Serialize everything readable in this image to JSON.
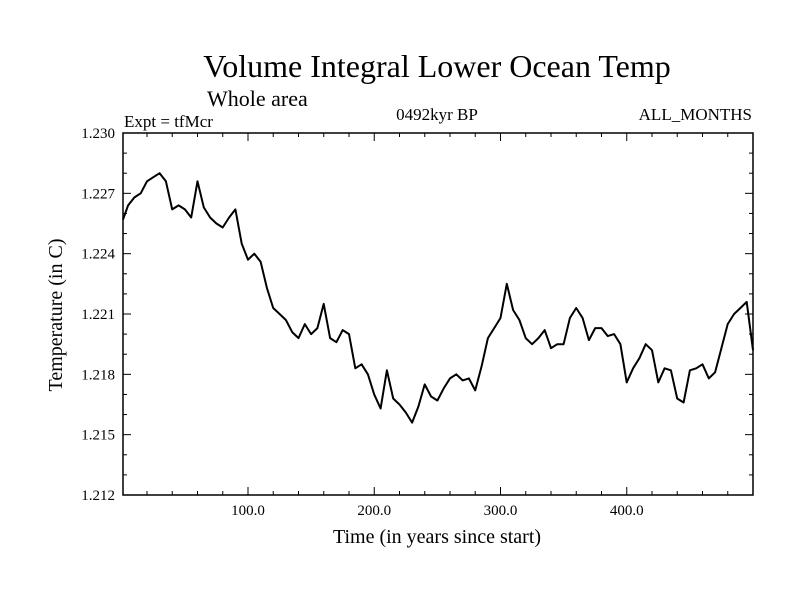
{
  "chart_data": {
    "type": "line",
    "title": "Volume Integral Lower Ocean Temp",
    "subtitle": "Whole area",
    "left_label": "Expt = tfMcr",
    "center_label": "0492kyr BP",
    "right_label": "ALL_MONTHS",
    "xlabel": "Time (in years since start)",
    "ylabel": "Temperature (in C)",
    "xlim": [
      1,
      500
    ],
    "ylim": [
      1.212,
      1.23
    ],
    "x_ticks": [
      100,
      200,
      300,
      400
    ],
    "x_tick_labels": [
      "100.0",
      "200.0",
      "300.0",
      "400.0"
    ],
    "y_ticks": [
      1.212,
      1.215,
      1.218,
      1.221,
      1.224,
      1.227,
      1.23
    ],
    "y_tick_labels": [
      "1.212",
      "1.215",
      "1.218",
      "1.221",
      "1.224",
      "1.227",
      "1.230"
    ],
    "series": [
      {
        "name": "Volume integral lower ocean temperature",
        "x": [
          1,
          5,
          10,
          15,
          20,
          25,
          30,
          35,
          40,
          45,
          50,
          55,
          60,
          65,
          70,
          75,
          80,
          85,
          90,
          95,
          100,
          105,
          110,
          115,
          120,
          125,
          130,
          135,
          140,
          145,
          150,
          155,
          160,
          165,
          170,
          175,
          180,
          185,
          190,
          195,
          200,
          205,
          210,
          215,
          220,
          225,
          230,
          235,
          240,
          245,
          250,
          255,
          260,
          265,
          270,
          275,
          280,
          285,
          290,
          295,
          300,
          305,
          310,
          315,
          320,
          325,
          330,
          335,
          340,
          345,
          350,
          355,
          360,
          365,
          370,
          375,
          380,
          385,
          390,
          395,
          400,
          405,
          410,
          415,
          420,
          425,
          430,
          435,
          440,
          445,
          450,
          455,
          460,
          465,
          470,
          475,
          480,
          485,
          490,
          495,
          500
        ],
        "values": [
          1.2257,
          1.2264,
          1.2268,
          1.227,
          1.2276,
          1.2278,
          1.228,
          1.2276,
          1.2262,
          1.2264,
          1.2262,
          1.2258,
          1.2276,
          1.2263,
          1.2258,
          1.2255,
          1.2253,
          1.2258,
          1.2262,
          1.2245,
          1.2237,
          1.224,
          1.2236,
          1.2223,
          1.2213,
          1.221,
          1.2207,
          1.2201,
          1.2198,
          1.2205,
          1.22,
          1.2203,
          1.2215,
          1.2198,
          1.2196,
          1.2202,
          1.22,
          1.2183,
          1.2185,
          1.218,
          1.217,
          1.2163,
          1.2182,
          1.2168,
          1.2165,
          1.2161,
          1.2156,
          1.2164,
          1.2175,
          1.2169,
          1.2167,
          1.2173,
          1.2178,
          1.218,
          1.2177,
          1.2178,
          1.2172,
          1.2184,
          1.2198,
          1.2203,
          1.2208,
          1.2225,
          1.2212,
          1.2207,
          1.2198,
          1.2195,
          1.2198,
          1.2202,
          1.2193,
          1.2195,
          1.2195,
          1.2208,
          1.2213,
          1.2208,
          1.2197,
          1.2203,
          1.2203,
          1.2199,
          1.22,
          1.2195,
          1.2176,
          1.2183,
          1.2188,
          1.2195,
          1.2192,
          1.2176,
          1.2183,
          1.2182,
          1.2168,
          1.2166,
          1.2182,
          1.2183,
          1.2185,
          1.2178,
          1.2181,
          1.2193,
          1.2205,
          1.221,
          1.2213,
          1.2216,
          1.2192
        ]
      }
    ]
  }
}
